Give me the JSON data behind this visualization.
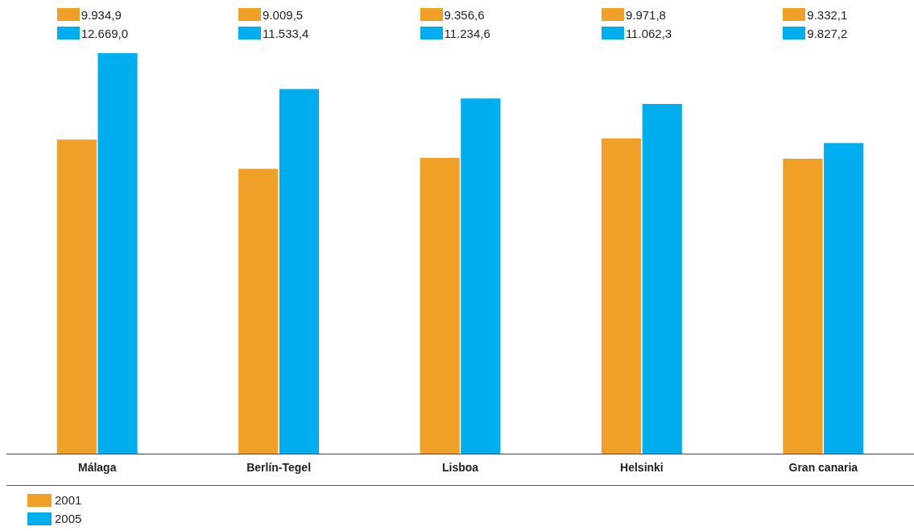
{
  "chart_data": {
    "type": "bar",
    "categories": [
      "Málaga",
      "Berlín-Tegel",
      "Lisboa",
      "Helsinki",
      "Gran canaria"
    ],
    "series": [
      {
        "name": "2001",
        "color": "#f0a026",
        "values": [
          9934.9,
          9009.5,
          9356.6,
          9971.8,
          9332.1
        ],
        "value_labels": [
          "9.934,9",
          "9.009,5",
          "9.356,6",
          "9.971,8",
          "9.332,1"
        ]
      },
      {
        "name": "2005",
        "color": "#00adef",
        "values": [
          12669.0,
          11533.4,
          11234.6,
          11062.3,
          9827.2
        ],
        "value_labels": [
          "12.669,0",
          "11.533,4",
          "11.234,6",
          "11.062,3",
          "9.827,2"
        ]
      }
    ],
    "legend": "bottom left",
    "grid": false
  }
}
